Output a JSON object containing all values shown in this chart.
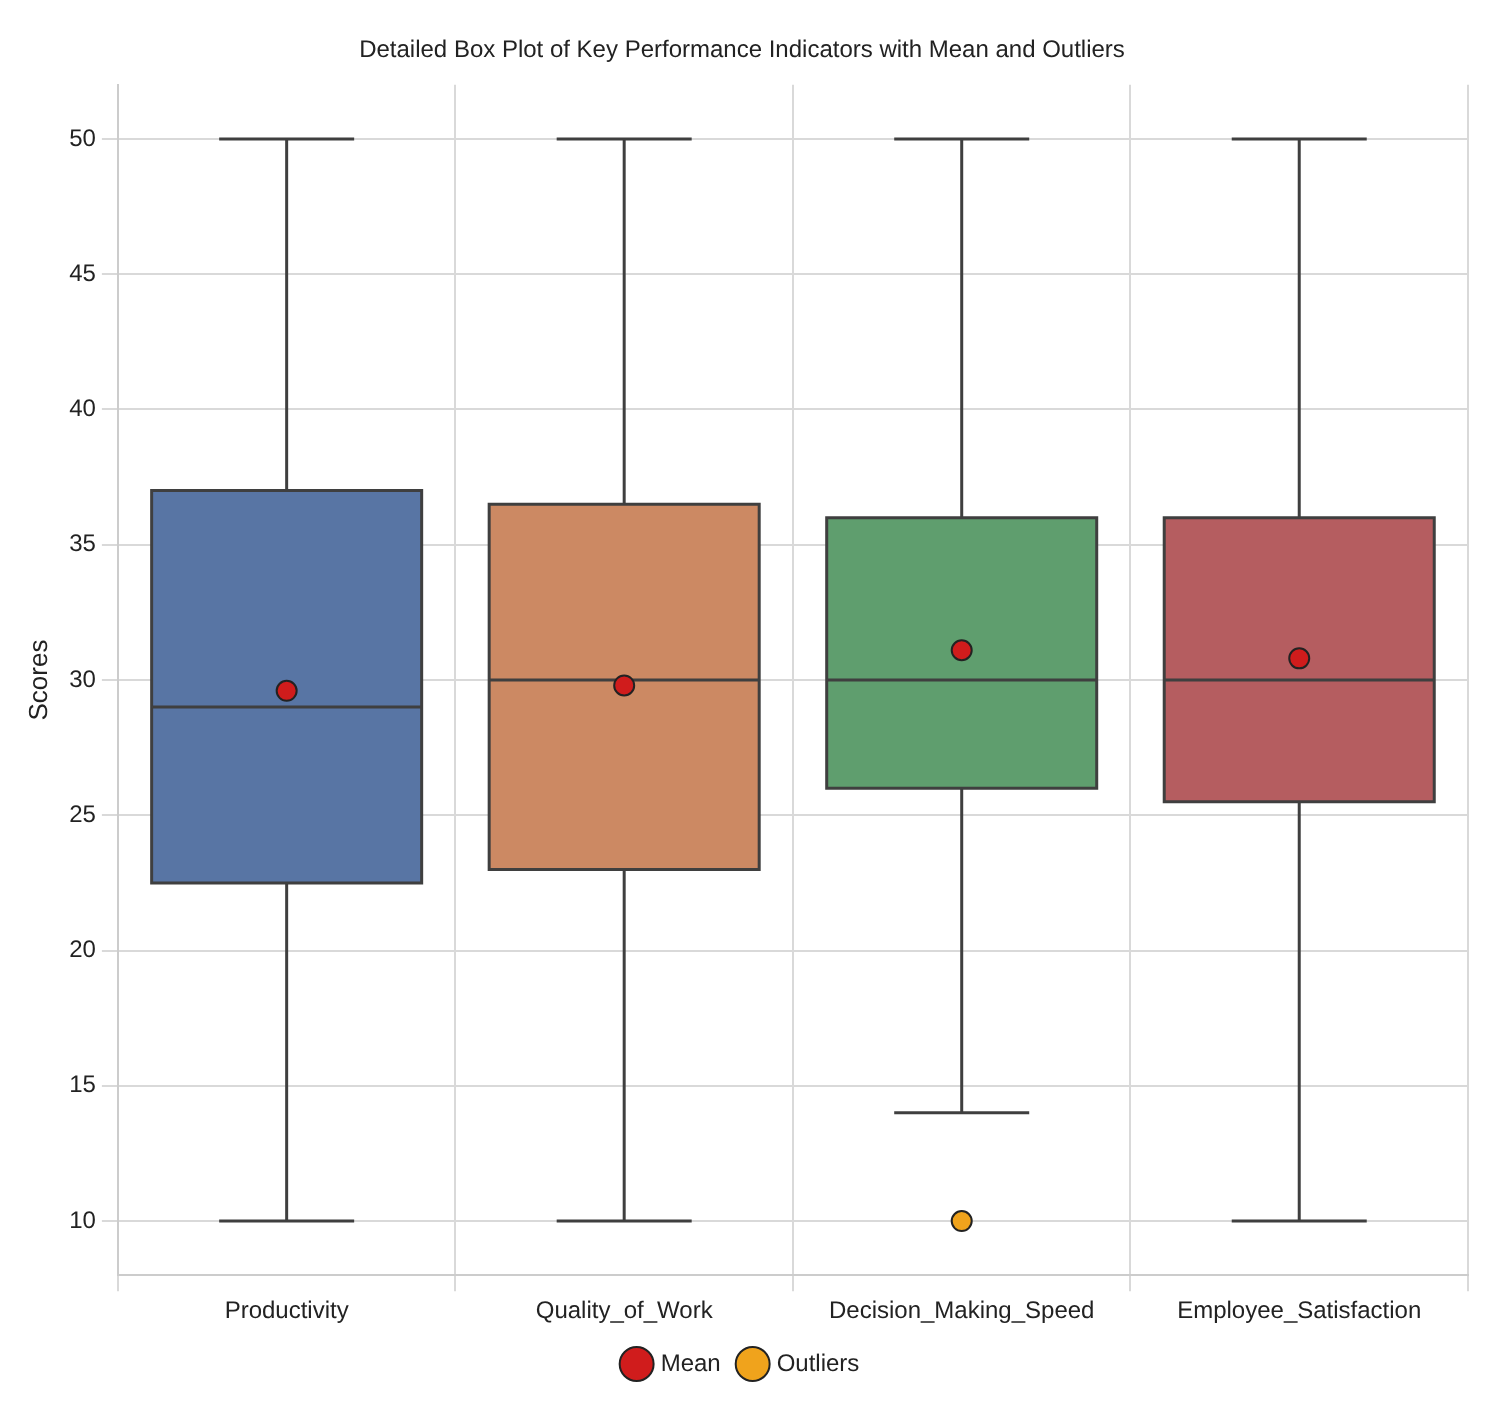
{
  "chart_data": {
    "type": "box",
    "title": "Detailed Box Plot of Key Performance Indicators with Mean and Outliers",
    "ylabel": "Scores",
    "categories": [
      "Productivity",
      "Quality_of_Work",
      "Decision_Making_Speed",
      "Employee_Satisfaction"
    ],
    "colors": [
      "#5875a4",
      "#cc8963",
      "#5f9e6e",
      "#b55d60"
    ],
    "boxes": [
      {
        "low": 10,
        "q1": 22.5,
        "median": 29,
        "q3": 37,
        "high": 50
      },
      {
        "low": 10,
        "q1": 23,
        "median": 30,
        "q3": 36.5,
        "high": 50
      },
      {
        "low": 14,
        "q1": 26,
        "median": 30,
        "q3": 36,
        "high": 50
      },
      {
        "low": 10,
        "q1": 25.5,
        "median": 30,
        "q3": 36,
        "high": 50
      }
    ],
    "series": [
      {
        "name": "Mean",
        "type": "scatter",
        "color": "#d01c1c",
        "x": [
          "Productivity",
          "Quality_of_Work",
          "Decision_Making_Speed",
          "Employee_Satisfaction"
        ],
        "values": [
          29.6,
          29.8,
          31.1,
          30.8
        ]
      },
      {
        "name": "Outliers",
        "type": "scatter",
        "color": "#f0a31c",
        "x": [
          "Decision_Making_Speed"
        ],
        "values": [
          10
        ]
      }
    ],
    "ylim": [
      8,
      52
    ],
    "yticks": [
      10,
      15,
      20,
      25,
      30,
      35,
      40,
      45,
      50
    ],
    "grid": true,
    "legend": "bottom",
    "marker": "circle"
  }
}
